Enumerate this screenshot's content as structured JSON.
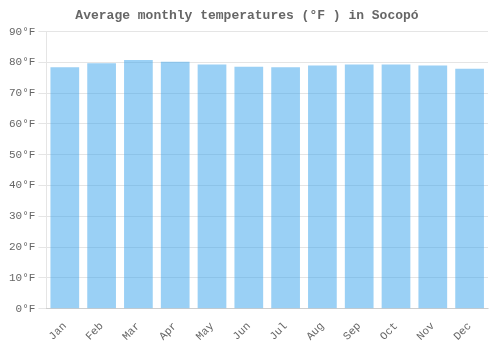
{
  "chart_data": {
    "type": "bar",
    "title": "Average monthly temperatures (°F ) in Socopó",
    "categories": [
      "Jan",
      "Feb",
      "Mar",
      "Apr",
      "May",
      "Jun",
      "Jul",
      "Aug",
      "Sep",
      "Oct",
      "Nov",
      "Dec"
    ],
    "values": [
      78.4,
      79.7,
      80.8,
      80.2,
      79.3,
      78.6,
      78.4,
      79.0,
      79.3,
      79.3,
      79.0,
      77.9
    ],
    "ylim": [
      0,
      90
    ],
    "yticks": [
      {
        "value": 0,
        "label": "0°F"
      },
      {
        "value": 10,
        "label": "10°F"
      },
      {
        "value": 20,
        "label": "20°F"
      },
      {
        "value": 30,
        "label": "30°F"
      },
      {
        "value": 40,
        "label": "40°F"
      },
      {
        "value": 50,
        "label": "50°F"
      },
      {
        "value": 60,
        "label": "60°F"
      },
      {
        "value": 70,
        "label": "70°F"
      },
      {
        "value": 80,
        "label": "80°F"
      },
      {
        "value": 90,
        "label": "90°F"
      }
    ],
    "grid": true
  }
}
